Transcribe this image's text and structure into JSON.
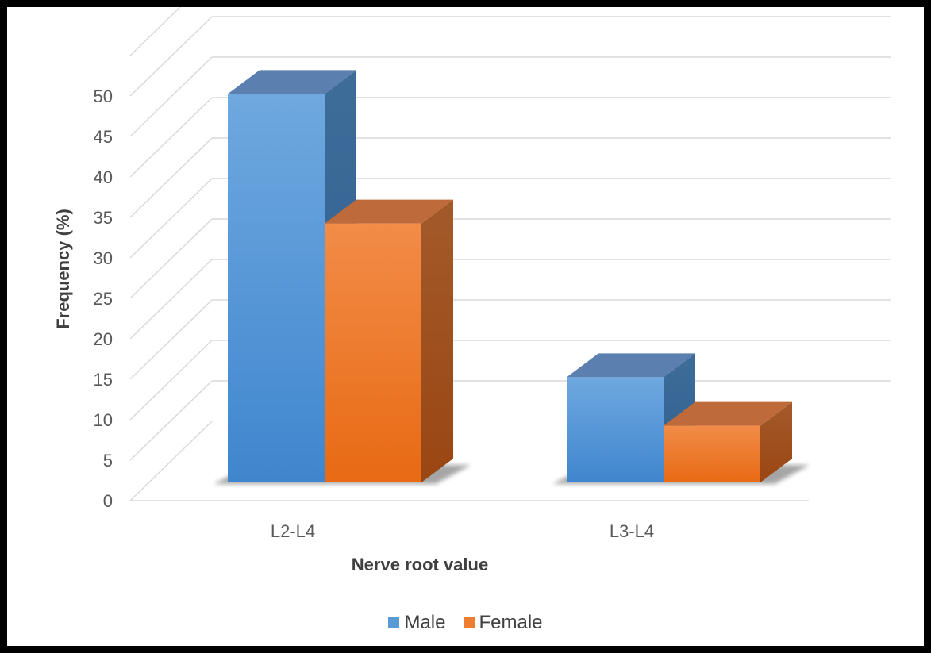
{
  "chart_data": {
    "type": "bar",
    "style": "3d-clustered-column",
    "categories": [
      "L2-L4",
      "L3-L4"
    ],
    "series": [
      {
        "name": "Male",
        "values": [
          48,
          13
        ],
        "color": "#5B9BD5"
      },
      {
        "name": "Female",
        "values": [
          32,
          7
        ],
        "color": "#ED7D31"
      }
    ],
    "xlabel": "Nerve root value",
    "ylabel": "Frequency (%)",
    "ylim": [
      0,
      50
    ],
    "yticks": [
      0,
      5,
      10,
      15,
      20,
      25,
      30,
      35,
      40,
      45,
      50
    ],
    "grid": true,
    "legend_position": "bottom"
  }
}
